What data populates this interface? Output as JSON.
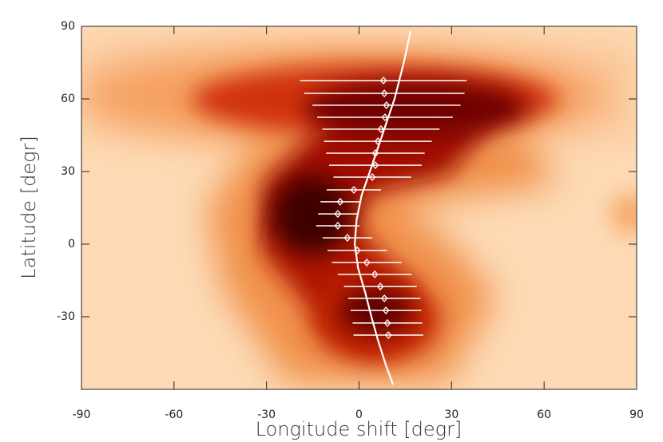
{
  "chart_data": {
    "type": "scatter",
    "xlabel": "Longitude shift [degr]",
    "ylabel": "Latitude [degr]",
    "xlim": [
      -90,
      90
    ],
    "ylim": [
      -60,
      90
    ],
    "xticks": [
      -90,
      -60,
      -30,
      0,
      30,
      60,
      90
    ],
    "yticks": [
      -30,
      0,
      30,
      60,
      90
    ],
    "marker_color": "#ffffff",
    "points": {
      "x": [
        7.9,
        8.2,
        8.9,
        8.4,
        7.1,
        6.1,
        5.3,
        5.3,
        4.3,
        -1.7,
        -6.1,
        -6.9,
        -6.9,
        -3.8,
        -0.6,
        2.5,
        5.1,
        6.9,
        8.2,
        8.7,
        9.2,
        9.5
      ],
      "y": [
        67.6,
        62.3,
        57.4,
        52.4,
        47.5,
        42.5,
        37.6,
        32.6,
        27.7,
        22.4,
        17.5,
        12.5,
        7.6,
        2.6,
        -2.6,
        -7.6,
        -12.5,
        -17.5,
        -22.4,
        -27.4,
        -32.6,
        -37.6
      ],
      "xerr": [
        27,
        26,
        24,
        22,
        19,
        17.5,
        16,
        15,
        12.6,
        8.8,
        6.4,
        6.4,
        7,
        8,
        9.6,
        11.3,
        12,
        11.8,
        11.7,
        11.5,
        11.3,
        11.3
      ]
    },
    "curve": {
      "x": [
        16.7,
        14.5,
        11.5,
        7.5,
        3.5,
        0.8,
        -0.8,
        -1.4,
        -0.3,
        2.0,
        4.0,
        6.2,
        8.7,
        11
      ],
      "y": [
        88,
        75,
        60,
        45,
        30,
        20,
        10,
        0,
        -10,
        -20,
        -30,
        -40,
        -50,
        -58
      ]
    }
  }
}
